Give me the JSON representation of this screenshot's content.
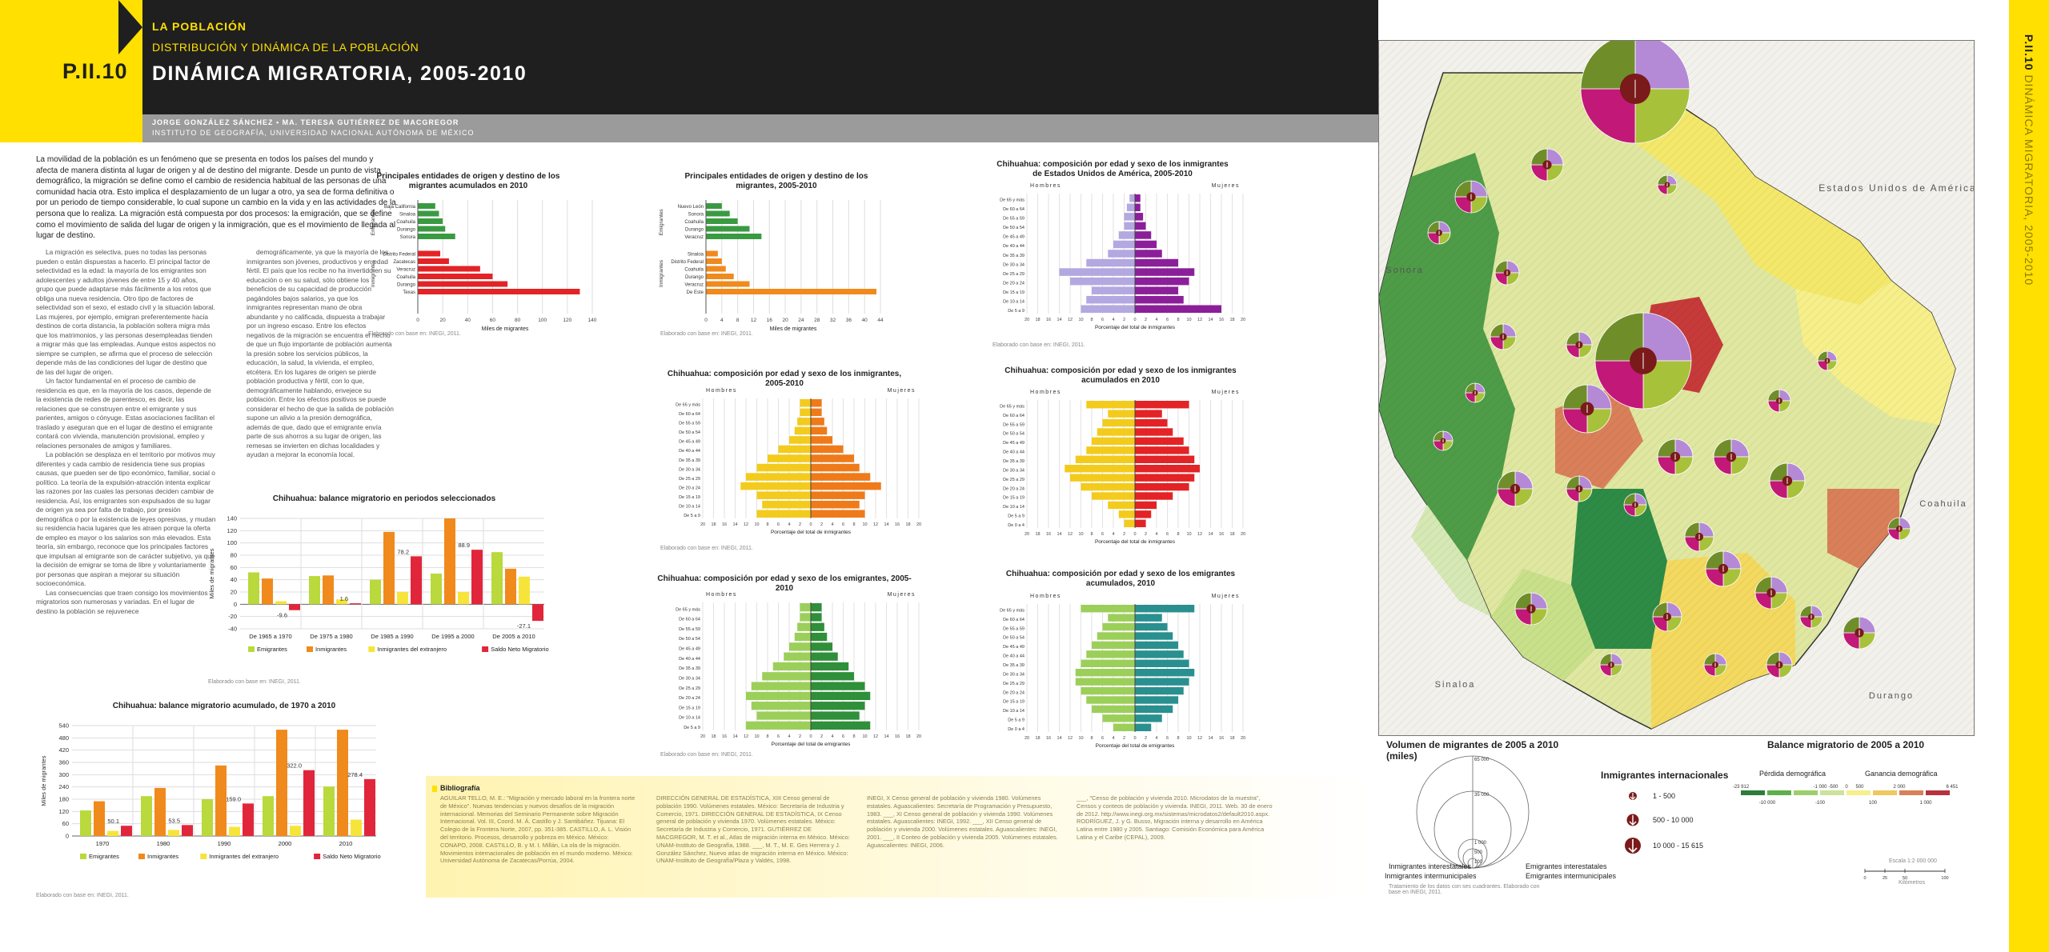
{
  "header": {
    "code": "P.II.10",
    "section": "LA POBLACIÓN",
    "subsection": "DISTRIBUCIÓN Y DINÁMICA DE LA POBLACIÓN",
    "title": "DINÁMICA MIGRATORIA, 2005-2010",
    "authors": "JORGE GONZÁLEZ SÁNCHEZ • MA. TERESA GUTIÉRREZ DE MACGREGOR",
    "institution": "INSTITUTO DE GEOGRAFÍA, UNIVERSIDAD NACIONAL AUTÓNOMA DE MÉXICO"
  },
  "side_band": {
    "code": "P.II.10",
    "title": "DINÁMICA MIGRATORIA, 2005-2010"
  },
  "text": {
    "intro": "La movilidad de la población es un fenómeno que se presenta en todos los países del mundo y afecta de manera distinta al lugar de origen y al de destino del migrante. Desde un punto de vista demográfico, la migración se define como el cambio de residencia habitual de las personas de una comunidad hacia otra. Esto implica el desplazamiento de un lugar a otro, ya sea de forma definitiva o por un periodo de tiempo considerable, lo cual supone un cambio en la vida y en las actividades de la persona que lo realiza. La migración está compuesta por dos procesos: la emigración, que se define como el movimiento de salida del lugar de origen y la inmigración, que es el movimiento de llegada al lugar de destino.",
    "col1": [
      "La migración es selectiva, pues no todas las personas pueden o están dispuestas a hacerlo. El principal factor de selectividad es la edad: la mayoría de los emigrantes son adolescentes y adultos jóvenes de entre 15 y 40 años, grupo que puede adaptarse más fácilmente a los retos que obliga una nueva residencia. Otro tipo de factores de selectividad son el sexo, el estado civil y la situación laboral. Las mujeres, por ejemplo, emigran preferentemente hacia destinos de corta distancia, la población soltera migra más que los matrimonios, y las personas desempleadas tienden a migrar más que las empleadas. Aunque estos aspectos no siempre se cumplen, se afirma que el proceso de selección depende más de las condiciones del lugar de destino que de las del lugar de origen.",
      "Un factor fundamental en el proceso de cambio de residencia es que, en la mayoría de los casos, depende de la existencia de redes de parentesco, es decir, las relaciones que se construyen entre el emigrante y sus parientes, amigos o cónyuge. Estas asociaciones facilitan el traslado y aseguran que en el lugar de destino el emigrante contará con vivienda, manutención provisional, empleo y relaciones personales de amigos y familiares.",
      "La población se desplaza en el territorio por motivos muy diferentes y cada cambio de residencia tiene sus propias causas, que pueden ser de tipo económico, familiar, social o político. La teoría de la expulsión-atracción intenta explicar las razones por las cuales las personas deciden cambiar de residencia. Así, los emigrantes son expulsados de su lugar de origen ya sea por falta de trabajo, por presión demográfica o por la existencia de leyes opresivas, y mudan su residencia hacia lugares que les atraen porque la oferta de empleo es mayor o los salarios son más elevados. Esta teoría, sin embargo, reconoce que los principales factores que impulsan al emigrante son de carácter subjetivo, ya que la decisión de emigrar se toma de libre y voluntariamente por personas que aspiran a mejorar su situación socioeconómica.",
      "Las consecuencias que traen consigo los movimientos migratorios son numerosas y variadas. En el lugar de destino la población se rejuvenece"
    ],
    "col2": [
      "demográficamente, ya que la mayoría de los inmigrantes son jóvenes, productivos y en edad fértil. El país que los recibe no ha invertido en su educación o en su salud, sólo obtiene los beneficios de su capacidad de producción pagándoles bajos salarios, ya que los inmigrantes representan mano de obra abundante y no calificada, dispuesta a trabajar por un ingreso escaso. Entre los efectos negativos de la migración se encuentra el hecho de que un flujo importante de población aumenta la presión sobre los servicios públicos, la educación, la salud, la vivienda, el empleo, etcétera. En los lugares de origen se pierde población productiva y fértil, con lo que, demográficamente hablando, envejece su población. Entre los efectos positivos se puede considerar el hecho de que la salida de población supone un alivio a la presión demográfica, además de que, dado que el emigrante envía parte de sus ahorros a su lugar de origen, las remesas se invierten en dichas localidades y ayudan a mejorar la economía local."
    ]
  },
  "charts": {
    "origin_dest_accum": {
      "title": "Principales entidades de origen y destino de los migrantes acumulados en 2010",
      "source": "Elaborado con base en: INEGI, 2011.",
      "xlabel": "Miles de migrantes",
      "group_emi": "Emigrantes",
      "group_inm": "Inmigrantes",
      "emi_labels": [
        "Baja California",
        "Sinaloa",
        "Coahuila",
        "Durango",
        "Sonora"
      ],
      "emi_values": [
        14,
        17,
        20,
        22,
        30
      ],
      "inm_labels": [
        "Distrito Federal",
        "Zacatecas",
        "Veracruz",
        "Coahuila",
        "Durango",
        "Texas"
      ],
      "inm_values": [
        18,
        25,
        50,
        60,
        72,
        130
      ],
      "ticks": [
        "0",
        "20",
        "40",
        "60",
        "80",
        "100",
        "120",
        "140"
      ],
      "max": 140
    },
    "origin_dest_0510": {
      "title": "Principales entidades de origen y destino de los migrantes, 2005-2010",
      "source": "Elaborado con base en: INEGI, 2011.",
      "xlabel": "Miles de migrantes",
      "group_emi": "Emigrantes",
      "group_inm": "Inmigrantes",
      "emi_labels": [
        "Nuevo León",
        "Sonora",
        "Coahuila",
        "Durango",
        "Veracruz"
      ],
      "emi_values": [
        4,
        6,
        8,
        11,
        14
      ],
      "inm_labels": [
        "Sinaloa",
        "Distrito Federal",
        "Coahuila",
        "Durango",
        "Veracruz",
        "De Este"
      ],
      "inm_values": [
        3,
        4,
        5,
        7,
        11,
        43
      ],
      "ticks": [
        "0",
        "4",
        "8",
        "12",
        "16",
        "20",
        "24",
        "28",
        "32",
        "36",
        "40",
        "44"
      ],
      "max": 44
    },
    "pyramid_usa": {
      "title": "Chihuahua: composición por edad y sexo de los inmigrantes de Estados Unidos de América, 2005-2010",
      "source": "Elaborado con base en: INEGI, 2011.",
      "men": "Hombres",
      "women": "Mujeres",
      "xlabel": "Porcentaje del total de inmigrantes",
      "ages": [
        "De 65 y más",
        "De 60 a 64",
        "De 55 a 59",
        "De 50 a 54",
        "De 45 a 49",
        "De 40 a 44",
        "De 35 a 39",
        "De 30 a 34",
        "De 25 a 29",
        "De 20 a 24",
        "De 15 a 19",
        "De 10 a 14",
        "De 5 a 9"
      ],
      "male": [
        1,
        1.5,
        2,
        2,
        3,
        4,
        5,
        9,
        14,
        12,
        8,
        9,
        10
      ],
      "female": [
        1,
        1,
        1.5,
        2,
        3,
        4,
        5,
        8,
        11,
        10,
        8,
        9,
        16
      ],
      "ticks": [
        "20",
        "18",
        "16",
        "14",
        "12",
        "10",
        "8",
        "6",
        "4",
        "2",
        "0",
        "2",
        "4",
        "6",
        "8",
        "10",
        "12",
        "14",
        "16",
        "18",
        "20"
      ],
      "max": 20,
      "color_m": "#b3a8e0",
      "color_f": "#8b1f99"
    },
    "pyramid_immigrants": {
      "title": "Chihuahua: composición por edad y sexo de los inmigrantes, 2005-2010",
      "source": "Elaborado con base en: INEGI, 2011.",
      "men": "Hombres",
      "women": "Mujeres",
      "xlabel": "Porcentaje del total de inmigrantes",
      "ages": [
        "De 65 y más",
        "De 60 a 64",
        "De 55 a 59",
        "De 50 a 54",
        "De 45 a 49",
        "De 40 a 44",
        "De 35 a 39",
        "De 30 a 34",
        "De 25 a 29",
        "De 20 a 24",
        "De 15 a 19",
        "De 10 a 14",
        "De 5 a 9"
      ],
      "male": [
        2,
        2,
        2.5,
        3,
        4,
        6,
        8,
        10,
        12,
        13,
        10,
        9,
        10
      ],
      "female": [
        2,
        2,
        2.5,
        3,
        4,
        6,
        8,
        9,
        11,
        13,
        10,
        9,
        10
      ],
      "ticks": [
        "20",
        "18",
        "16",
        "14",
        "12",
        "10",
        "8",
        "6",
        "4",
        "2",
        "0",
        "2",
        "4",
        "6",
        "8",
        "10",
        "12",
        "14",
        "16",
        "18",
        "20"
      ],
      "max": 20,
      "color_m": "#f3cb1d",
      "color_f": "#ef7a1a"
    },
    "pyramid_accum_imm": {
      "title": "Chihuahua: composición por edad y sexo de los inmigrantes acumulados en 2010",
      "source": "Elaborado con base en: INEGI, 2011.",
      "men": "Hombres",
      "women": "Mujeres",
      "xlabel": "Porcentaje del total de inmigrantes",
      "ages": [
        "De 65 y más",
        "De 60 a 64",
        "De 55 a 59",
        "De 50 a 54",
        "De 45 a 49",
        "De 40 a 44",
        "De 35 a 39",
        "De 30 a 34",
        "De 25 a 29",
        "De 20 a 24",
        "De 15 a 19",
        "De 10 a 14",
        "De 5 a 9",
        "De 0 a 4"
      ],
      "male": [
        9,
        5,
        6,
        7,
        8,
        9,
        11,
        13,
        12,
        10,
        8,
        5,
        3,
        2
      ],
      "female": [
        10,
        5,
        6,
        7,
        9,
        10,
        11,
        12,
        11,
        10,
        7,
        4,
        3,
        2
      ],
      "ticks": [
        "20",
        "18",
        "16",
        "14",
        "12",
        "10",
        "8",
        "6",
        "4",
        "2",
        "0",
        "2",
        "4",
        "6",
        "8",
        "10",
        "12",
        "14",
        "16",
        "18",
        "20"
      ],
      "max": 20,
      "color_m": "#f3cb1d",
      "color_f": "#e32326"
    },
    "pyramid_emigrants": {
      "title": "Chihuahua: composición por edad y sexo de los emigrantes, 2005-2010",
      "source": "Elaborado con base en: INEGI, 2011.",
      "men": "Hombres",
      "women": "Mujeres",
      "xlabel": "Porcentaje del total de emigrantes",
      "ages": [
        "De 65 y más",
        "De 60 a 64",
        "De 55 a 59",
        "De 50 a 54",
        "De 45 a 49",
        "De 40 a 44",
        "De 35 a 39",
        "De 30 a 34",
        "De 25 a 29",
        "De 20 a 24",
        "De 15 a 19",
        "De 10 a 14",
        "De 5 a 9"
      ],
      "male": [
        2,
        2,
        2.5,
        3,
        4,
        5,
        7,
        9,
        11,
        12,
        11,
        10,
        12
      ],
      "female": [
        2,
        2,
        2.5,
        3,
        4,
        5,
        7,
        8,
        10,
        11,
        10,
        9,
        11
      ],
      "ticks": [
        "20",
        "18",
        "16",
        "14",
        "12",
        "10",
        "8",
        "6",
        "4",
        "2",
        "0",
        "2",
        "4",
        "6",
        "8",
        "10",
        "12",
        "14",
        "16",
        "18",
        "20"
      ],
      "max": 20,
      "color_m": "#9ccf5a",
      "color_f": "#2f8f3a"
    },
    "pyramid_accum_emi": {
      "title": "Chihuahua: composición por edad y sexo de los emigrantes acumulados, 2010",
      "source": "Elaborado con base en: INEGI, 2011.",
      "men": "Hombres",
      "women": "Mujeres",
      "xlabel": "Porcentaje del total de emigrantes",
      "ages": [
        "De 65 y más",
        "De 60 a 64",
        "De 55 a 59",
        "De 50 a 54",
        "De 45 a 49",
        "De 40 a 44",
        "De 35 a 39",
        "De 30 a 34",
        "De 25 a 29",
        "De 20 a 24",
        "De 15 a 19",
        "De 10 a 14",
        "De 5 a 9",
        "De 0 a 4"
      ],
      "male": [
        10,
        5,
        6,
        7,
        8,
        9,
        10,
        11,
        11,
        10,
        9,
        8,
        6,
        4
      ],
      "female": [
        11,
        5,
        6,
        7,
        8,
        9,
        10,
        11,
        10,
        9,
        8,
        7,
        5,
        3
      ],
      "ticks": [
        "20",
        "18",
        "16",
        "14",
        "12",
        "10",
        "8",
        "6",
        "4",
        "2",
        "0",
        "2",
        "4",
        "6",
        "8",
        "10",
        "12",
        "14",
        "16",
        "18",
        "20"
      ],
      "max": 20,
      "color_m": "#9ccf5a",
      "color_f": "#2a8f8f"
    },
    "balance_periods": {
      "title": "Chihuahua: balance migratorio en periodos seleccionados",
      "source": "Elaborado con base en: INEGI, 2011.",
      "ylabel": "Miles de migrantes",
      "categories": [
        "De 1965 a 1970",
        "De 1975 a 1980",
        "De 1985 a 1990",
        "De 1995 a 2000",
        "De 2005 a 2010"
      ],
      "series": [
        {
          "name": "Emigrantes",
          "values": [
            52,
            46,
            40,
            50,
            85
          ]
        },
        {
          "name": "Inmigrantes",
          "values": [
            42,
            47,
            118,
            140,
            58
          ]
        },
        {
          "name": "Inmigrantes del extranjero",
          "values": [
            5,
            8,
            20,
            20,
            45
          ]
        },
        {
          "name": "Saldo Neto Migratorio",
          "values": [
            -9.6,
            1.6,
            78.2,
            88.9,
            -27.1
          ]
        }
      ],
      "value_labels": [
        "-9.6",
        "1.6",
        "78.2",
        "88.9",
        "-27.1"
      ],
      "ylim": [
        -40,
        140
      ],
      "yticks": [
        "140",
        "120",
        "100",
        "80",
        "60",
        "40",
        "20",
        "0",
        "-20",
        "-40"
      ]
    },
    "balance_accum": {
      "title": "Chihuahua: balance migratorio acumulado, de 1970 a 2010",
      "source": "Elaborado con base en: INEGI, 2011.",
      "ylabel": "Miles de migrantes",
      "categories": [
        "1970",
        "1980",
        "1990",
        "2000",
        "2010"
      ],
      "series": [
        {
          "name": "Emigrantes",
          "values": [
            125,
            195,
            180,
            195,
            242
          ]
        },
        {
          "name": "Inmigrantes",
          "values": [
            170,
            235,
            345,
            520,
            520
          ]
        },
        {
          "name": "Inmigrantes del extranjero",
          "values": [
            25,
            30,
            45,
            50,
            80
          ]
        },
        {
          "name": "Saldo Neto Migratorio",
          "values": [
            50.1,
            53.5,
            159.0,
            322.0,
            278.4
          ]
        }
      ],
      "value_labels": [
        "50.1",
        "53.5",
        "159.0",
        "322.0",
        "278.4"
      ],
      "ylim": [
        0,
        540
      ],
      "yticks": [
        "540",
        "480",
        "420",
        "360",
        "300",
        "240",
        "180",
        "120",
        "60",
        "0"
      ]
    }
  },
  "colors": {
    "emigrantes": "#b9d93c",
    "inmigrantes": "#f08a1c",
    "extranjero": "#f7e43b",
    "saldo": "#e1263b",
    "brand_yellow": "#ffe000",
    "dark": "#1f1f1f"
  },
  "bibliography": {
    "title": "Bibliografía",
    "cols": [
      "AGUILAR TELLO, M. E.: \"Migración y mercado laboral en la frontera norte de México\". Nuevas tendencias y nuevos desafíos de la migración internacional. Memorias del Seminario Permanente sobre Migración Internacional. Vol. III, Coord. M. Á. Castillo y J. Santibáñez. Tijuana: El Colegio de la Frontera Norte, 2007, pp. 351-385. CASTILLO, A. L. Visión del territorio. Procesos, desarrollo y pobreza en México. México: CONAPO, 2008. CASTILLO, B. y M. I. Millán, La ola de la migración. Movimientos internacionales de población en el mundo moderno. México: Universidad Autónoma de Zacatecas/Porrúa, 2004.",
      "DIRECCIÓN GENERAL DE ESTADÍSTICA, XIII Censo general de población 1990. Volúmenes estatales. México: Secretaría de Industria y Comercio, 1971. DIRECCIÓN GENERAL DE ESTADÍSTICA, IX Censo general de población y vivienda 1970. Volúmenes estatales. México: Secretaría de Industria y Comercio, 1971. GUTIÉRREZ DE MACGREGOR, M. T. et al., Atlas de migración interna en México. México: UNAM-Instituto de Geografía, 1988. ___, M. T., M. E. Ges Herrera y J. González Sánchez, Nuevo atlas de migración interna en México. México: UNAM-Instituto de Geografía/Plaza y Valdés, 1998.",
      "INEGI, X Censo general de población y vivienda 1980. Volúmenes estatales. Aguascalientes: Secretaría de Programación y Presupuesto, 1983. ___, XI Censo general de población y vivienda 1990. Volúmenes estatales. Aguascalientes: INEGI, 1992. ___, XII Censo general de población y vivienda 2000. Volúmenes estatales. Aguascalientes: INEGI, 2001. ___, II Conteo de población y vivienda 2005. Volúmenes estatales. Aguascalientes: INEGI, 2006.",
      "___, \"Censo de población y vivienda 2010. Microdatos de la muestra\", Censos y conteos de población y vivienda. INEGI, 2011. Web. 30 de enero de 2012. http://www.inegi.org.mx/sistemas/microdatos2/default2010.aspx. RODRÍGUEZ, J. y G. Busso, Migración interna y desarrollo en América Latina entre 1980 y 2005. Santiago: Comisión Económica para América Latina y el Caribe (CEPAL), 2009."
    ]
  },
  "map": {
    "labels": {
      "usa": "Estados Unidos de América",
      "sonora": "Sonora",
      "coahuila": "Coahuila",
      "sinaloa": "Sinaloa",
      "durango": "Durango"
    },
    "circles_legend": {
      "title": "Volumen de migrantes de 2005 a 2010 (miles)",
      "values": [
        "65 000",
        "35 000",
        "1 000",
        "500",
        "100"
      ],
      "items": [
        "Inmigrantes interestatales",
        "Inmigrantes intermunicipales",
        "Emigrantes interestatales",
        "Emigrantes intermunicipales"
      ],
      "note": "Tratamiento de los datos con ses cuadrantes. Elaborado con base en INEGI, 2011."
    },
    "international_legend": {
      "title": "Inmigrantes internacionales",
      "items": [
        "1 - 500",
        "500 - 10 000",
        "10 000 - 15 615"
      ]
    },
    "balance_legend": {
      "title": "Balance migratorio de 2005 a 2010",
      "loss": "Pérdida demográfica",
      "gain": "Ganancia demográfica",
      "top_ticks": [
        "-23 912",
        "-1 000",
        "-500",
        "0",
        "500",
        "2 000",
        "6 451"
      ],
      "bottom_ticks": [
        "-10 000",
        "-100",
        "100",
        "1 000"
      ],
      "colors": [
        "#2e7d3a",
        "#5fb04a",
        "#9ccf6a",
        "#cbe39a",
        "#f6ef8a",
        "#f0c760",
        "#d9805a",
        "#b7323f"
      ]
    },
    "scale": {
      "label": "Escala 1:2 000 000",
      "ticks": [
        "0",
        "25",
        "50",
        "100"
      ],
      "unit": "Kilómetros"
    }
  }
}
